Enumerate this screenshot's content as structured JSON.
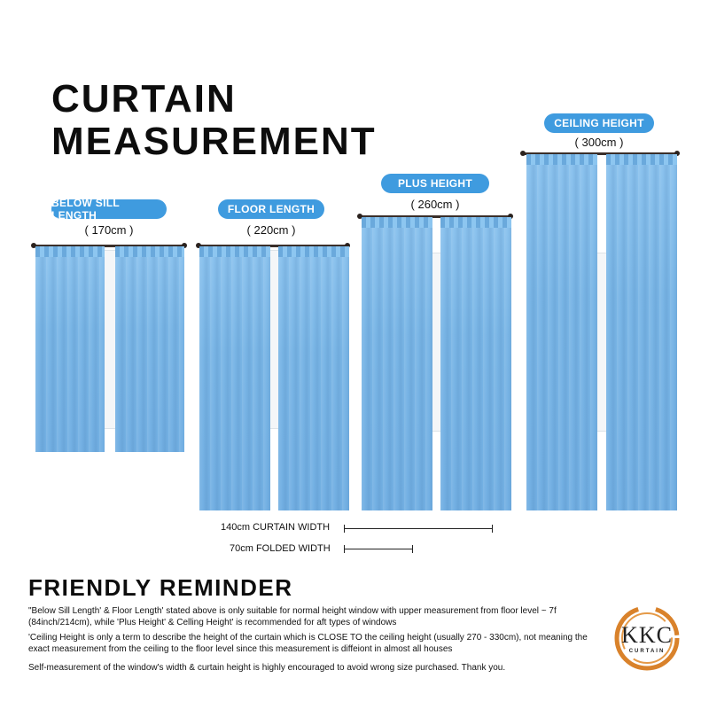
{
  "title": {
    "line1": "CURTAIN",
    "line2": "MEASUREMENT"
  },
  "curtains": [
    {
      "label": "BELOW SILL LENGTH",
      "size": "( 170cm )"
    },
    {
      "label": "FLOOR LENGTH",
      "size": "( 220cm )"
    },
    {
      "label": "PLUS HEIGHT",
      "size": "( 260cm )"
    },
    {
      "label": "CEILING HEIGHT",
      "size": "( 300cm )"
    }
  ],
  "widths": {
    "curtain": "140cm CURTAIN WIDTH",
    "folded": "70cm FOLDED WIDTH"
  },
  "reminder": {
    "title": "FRIENDLY REMINDER",
    "note1": "\"Below Sill Length' & Floor Length' stated above is only suitable for normal height window with upper measurement from floor level ~ 7f (84inch/214cm), while  'Plus Height' & Celling Height' is recommended for aft types of windows",
    "note2": "'Ceiling Height is only a term to describe the height of the curtain which is CLOSE TO the ceiling height (usually 270 - 330cm), not meaning the exact measurement from the ceiling to the floor level since this measurement is diffeiont in almost all houses",
    "note3": "Self-measurement of the window's width & curtain height is highly encouraged to avoid wrong size purchased. Thank you."
  },
  "logo": {
    "text": "KKC",
    "sub": "CURTAIN",
    "ring_color": "#d9822b"
  },
  "colors": {
    "accent": "#3f9bdf",
    "curtain": "#7ab6e6"
  }
}
